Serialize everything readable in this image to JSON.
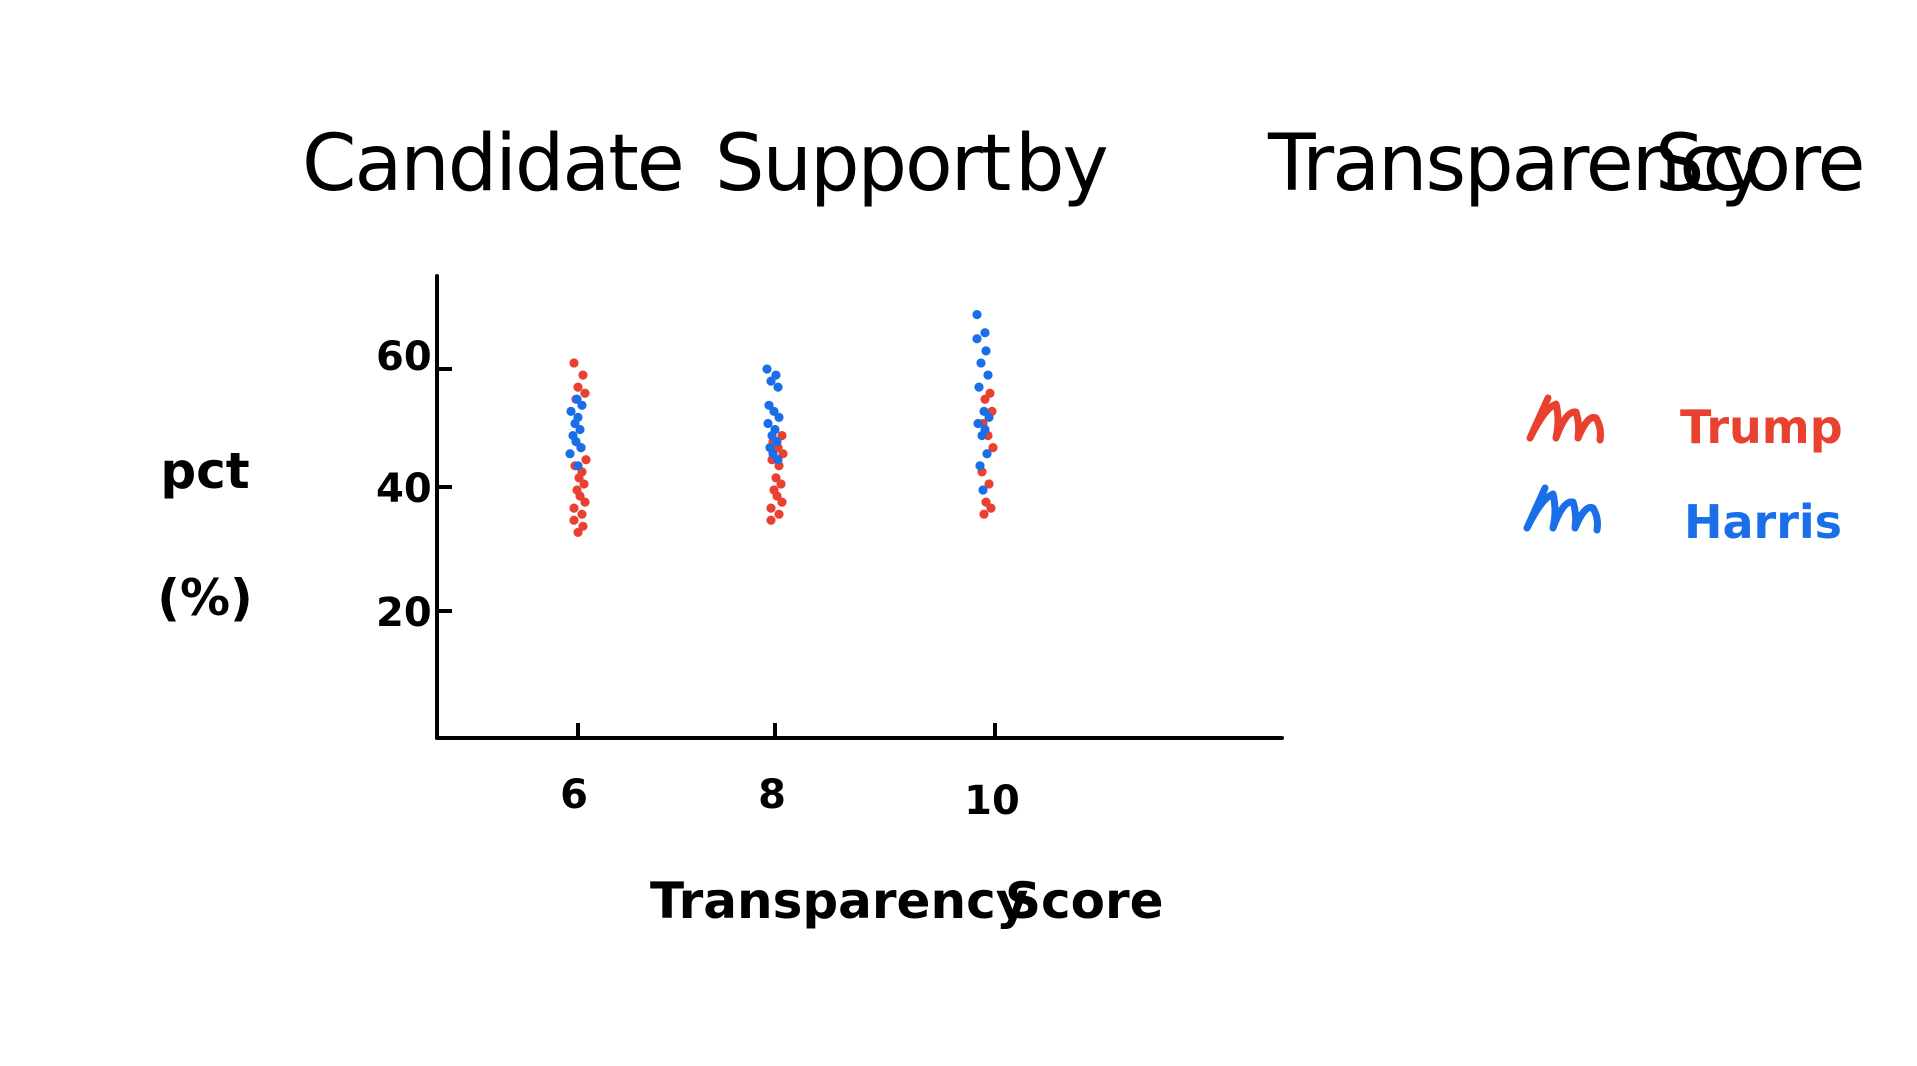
{
  "chart_data": {
    "type": "scatter",
    "title_words": [
      "Candidate",
      "Support",
      "by",
      "Transparency",
      "Score"
    ],
    "xlabel_words": [
      "Transparency",
      "Score"
    ],
    "ylabel_lines": [
      "pct",
      "(%)"
    ],
    "x_ticks": [
      "6",
      "8",
      "10"
    ],
    "y_ticks": [
      "20",
      "40",
      "60"
    ],
    "ylim": [
      0,
      75
    ],
    "grid": false,
    "legend_position": "right",
    "colors": {
      "Trump": "#e8412f",
      "Harris": "#1a6fe8"
    },
    "series": [
      {
        "name": "Trump",
        "points": [
          [
            6,
            61
          ],
          [
            6,
            59
          ],
          [
            6,
            57
          ],
          [
            6,
            56
          ],
          [
            6,
            55
          ],
          [
            6,
            47
          ],
          [
            6,
            45
          ],
          [
            6,
            44
          ],
          [
            6,
            43
          ],
          [
            6,
            42
          ],
          [
            6,
            41
          ],
          [
            6,
            40
          ],
          [
            6,
            39
          ],
          [
            6,
            38
          ],
          [
            6,
            37
          ],
          [
            6,
            36
          ],
          [
            6,
            35
          ],
          [
            6,
            34
          ],
          [
            6,
            33
          ],
          [
            8,
            49
          ],
          [
            8,
            48
          ],
          [
            8,
            47
          ],
          [
            8,
            46
          ],
          [
            8,
            45
          ],
          [
            8,
            44
          ],
          [
            8,
            42
          ],
          [
            8,
            41
          ],
          [
            8,
            40
          ],
          [
            8,
            39
          ],
          [
            8,
            38
          ],
          [
            8,
            37
          ],
          [
            8,
            36
          ],
          [
            8,
            35
          ],
          [
            10,
            56
          ],
          [
            10,
            55
          ],
          [
            10,
            53
          ],
          [
            10,
            51
          ],
          [
            10,
            49
          ],
          [
            10,
            47
          ],
          [
            10,
            43
          ],
          [
            10,
            41
          ],
          [
            10,
            38
          ],
          [
            10,
            37
          ],
          [
            10,
            36
          ]
        ]
      },
      {
        "name": "Harris",
        "points": [
          [
            6,
            55
          ],
          [
            6,
            54
          ],
          [
            6,
            53
          ],
          [
            6,
            52
          ],
          [
            6,
            51
          ],
          [
            6,
            50
          ],
          [
            6,
            49
          ],
          [
            6,
            48
          ],
          [
            6,
            47
          ],
          [
            6,
            46
          ],
          [
            6,
            44
          ],
          [
            8,
            60
          ],
          [
            8,
            59
          ],
          [
            8,
            58
          ],
          [
            8,
            57
          ],
          [
            8,
            54
          ],
          [
            8,
            53
          ],
          [
            8,
            52
          ],
          [
            8,
            51
          ],
          [
            8,
            50
          ],
          [
            8,
            49
          ],
          [
            8,
            48
          ],
          [
            8,
            47
          ],
          [
            8,
            46
          ],
          [
            8,
            45
          ],
          [
            10,
            69
          ],
          [
            10,
            66
          ],
          [
            10,
            65
          ],
          [
            10,
            63
          ],
          [
            10,
            61
          ],
          [
            10,
            59
          ],
          [
            10,
            57
          ],
          [
            10,
            53
          ],
          [
            10,
            52
          ],
          [
            10,
            51
          ],
          [
            10,
            50
          ],
          [
            10,
            49
          ],
          [
            10,
            46
          ],
          [
            10,
            44
          ],
          [
            10,
            40
          ]
        ]
      }
    ]
  }
}
